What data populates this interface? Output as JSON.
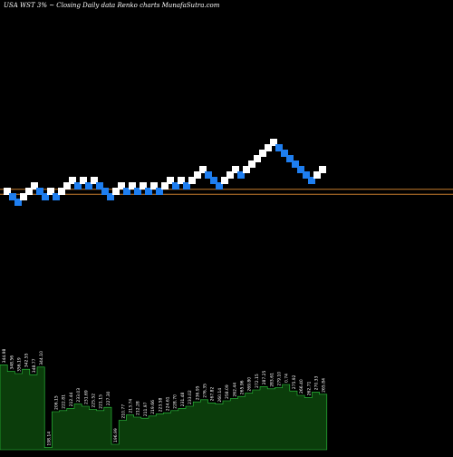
{
  "header": {
    "ticker_text": "USA WST 3% ~",
    "description": "Closing Daily data  Renko  charts MunafaSutra.com"
  },
  "colors": {
    "background": "#000000",
    "up_brick": "#ffffff",
    "down_brick": "#1e7ef0",
    "reference_line": "#c47a2c",
    "volume_fill": "#0b3d0b",
    "volume_outline": "#2ecc40",
    "label_text": "#ffffff"
  },
  "chart_data": {
    "type": "renko",
    "title": "",
    "bricks": [
      {
        "index": 0,
        "level": 38,
        "direction": "up"
      },
      {
        "index": 1,
        "level": 37,
        "direction": "down"
      },
      {
        "index": 2,
        "level": 36,
        "direction": "down"
      },
      {
        "index": 3,
        "level": 37,
        "direction": "up"
      },
      {
        "index": 4,
        "level": 38,
        "direction": "up"
      },
      {
        "index": 5,
        "level": 39,
        "direction": "up"
      },
      {
        "index": 6,
        "level": 38,
        "direction": "down"
      },
      {
        "index": 7,
        "level": 37,
        "direction": "down"
      },
      {
        "index": 8,
        "level": 38,
        "direction": "up"
      },
      {
        "index": 9,
        "level": 37,
        "direction": "down"
      },
      {
        "index": 10,
        "level": 38,
        "direction": "up"
      },
      {
        "index": 11,
        "level": 39,
        "direction": "up"
      },
      {
        "index": 12,
        "level": 40,
        "direction": "up"
      },
      {
        "index": 13,
        "level": 39,
        "direction": "down"
      },
      {
        "index": 14,
        "level": 40,
        "direction": "up"
      },
      {
        "index": 15,
        "level": 39,
        "direction": "down"
      },
      {
        "index": 16,
        "level": 40,
        "direction": "up"
      },
      {
        "index": 17,
        "level": 39,
        "direction": "down"
      },
      {
        "index": 18,
        "level": 38,
        "direction": "down"
      },
      {
        "index": 19,
        "level": 37,
        "direction": "down"
      },
      {
        "index": 20,
        "level": 38,
        "direction": "up"
      },
      {
        "index": 21,
        "level": 39,
        "direction": "up"
      },
      {
        "index": 22,
        "level": 38,
        "direction": "down"
      },
      {
        "index": 23,
        "level": 39,
        "direction": "up"
      },
      {
        "index": 24,
        "level": 38,
        "direction": "down"
      },
      {
        "index": 25,
        "level": 39,
        "direction": "up"
      },
      {
        "index": 26,
        "level": 38,
        "direction": "down"
      },
      {
        "index": 27,
        "level": 39,
        "direction": "up"
      },
      {
        "index": 28,
        "level": 38,
        "direction": "down"
      },
      {
        "index": 29,
        "level": 39,
        "direction": "up"
      },
      {
        "index": 30,
        "level": 40,
        "direction": "up"
      },
      {
        "index": 31,
        "level": 39,
        "direction": "down"
      },
      {
        "index": 32,
        "level": 40,
        "direction": "up"
      },
      {
        "index": 33,
        "level": 39,
        "direction": "down"
      },
      {
        "index": 34,
        "level": 40,
        "direction": "up"
      },
      {
        "index": 35,
        "level": 41,
        "direction": "up"
      },
      {
        "index": 36,
        "level": 42,
        "direction": "up"
      },
      {
        "index": 37,
        "level": 41,
        "direction": "down"
      },
      {
        "index": 38,
        "level": 40,
        "direction": "down"
      },
      {
        "index": 39,
        "level": 39,
        "direction": "down"
      },
      {
        "index": 40,
        "level": 40,
        "direction": "up"
      },
      {
        "index": 41,
        "level": 41,
        "direction": "up"
      },
      {
        "index": 42,
        "level": 42,
        "direction": "up"
      },
      {
        "index": 43,
        "level": 41,
        "direction": "down"
      },
      {
        "index": 44,
        "level": 42,
        "direction": "up"
      },
      {
        "index": 45,
        "level": 43,
        "direction": "up"
      },
      {
        "index": 46,
        "level": 44,
        "direction": "up"
      },
      {
        "index": 47,
        "level": 45,
        "direction": "up"
      },
      {
        "index": 48,
        "level": 46,
        "direction": "up"
      },
      {
        "index": 49,
        "level": 47,
        "direction": "up"
      },
      {
        "index": 50,
        "level": 46,
        "direction": "down"
      },
      {
        "index": 51,
        "level": 45,
        "direction": "down"
      },
      {
        "index": 52,
        "level": 44,
        "direction": "down"
      },
      {
        "index": 53,
        "level": 43,
        "direction": "down"
      },
      {
        "index": 54,
        "level": 42,
        "direction": "down"
      },
      {
        "index": 55,
        "level": 41,
        "direction": "down"
      },
      {
        "index": 56,
        "level": 40,
        "direction": "down"
      },
      {
        "index": 57,
        "level": 41,
        "direction": "up"
      },
      {
        "index": 58,
        "level": 42,
        "direction": "up"
      }
    ],
    "reference_lines": [
      {
        "name": "line-upper",
        "level": 37.7
      },
      {
        "name": "line-lower",
        "level": 36.8
      }
    ],
    "volume": {
      "columns": [
        {
          "index": 0,
          "value": 78,
          "label": "344.98"
        },
        {
          "index": 1,
          "value": 72,
          "label": "348.56"
        },
        {
          "index": 2,
          "value": 70,
          "label": "356.19"
        },
        {
          "index": 3,
          "value": 74,
          "label": "342.55"
        },
        {
          "index": 4,
          "value": 69,
          "label": "348.77"
        },
        {
          "index": 5,
          "value": 76,
          "label": "344.10"
        },
        {
          "index": 6,
          "value": 2,
          "label": "198.14"
        },
        {
          "index": 7,
          "value": 35,
          "label": "206.15"
        },
        {
          "index": 8,
          "value": 36,
          "label": "222.81"
        },
        {
          "index": 9,
          "value": 38,
          "label": "212.44"
        },
        {
          "index": 10,
          "value": 42,
          "label": "233.03"
        },
        {
          "index": 11,
          "value": 40,
          "label": "231.69"
        },
        {
          "index": 12,
          "value": 37,
          "label": "225.52"
        },
        {
          "index": 13,
          "value": 36,
          "label": "221.15"
        },
        {
          "index": 14,
          "value": 39,
          "label": "227.30"
        },
        {
          "index": 15,
          "value": 5,
          "label": "196.99"
        },
        {
          "index": 16,
          "value": 27,
          "label": "210.77"
        },
        {
          "index": 17,
          "value": 32,
          "label": "213.74"
        },
        {
          "index": 18,
          "value": 30,
          "label": "212.28"
        },
        {
          "index": 19,
          "value": 29,
          "label": "211.97"
        },
        {
          "index": 20,
          "value": 31,
          "label": "219.66"
        },
        {
          "index": 21,
          "value": 33,
          "label": "223.58"
        },
        {
          "index": 22,
          "value": 34,
          "label": "224.61"
        },
        {
          "index": 23,
          "value": 36,
          "label": "228.70"
        },
        {
          "index": 24,
          "value": 38,
          "label": "231.48"
        },
        {
          "index": 25,
          "value": 40,
          "label": "233.02"
        },
        {
          "index": 26,
          "value": 44,
          "label": "236.95"
        },
        {
          "index": 27,
          "value": 46,
          "label": "276.35"
        },
        {
          "index": 28,
          "value": 43,
          "label": "267.82"
        },
        {
          "index": 29,
          "value": 42,
          "label": "260.14"
        },
        {
          "index": 30,
          "value": 45,
          "label": "258.09"
        },
        {
          "index": 31,
          "value": 47,
          "label": "262.44"
        },
        {
          "index": 32,
          "value": 49,
          "label": "265.96"
        },
        {
          "index": 33,
          "value": 52,
          "label": "269.80"
        },
        {
          "index": 34,
          "value": 55,
          "label": "272.15"
        },
        {
          "index": 35,
          "value": 58,
          "label": "287.25"
        },
        {
          "index": 36,
          "value": 56,
          "label": "283.61"
        },
        {
          "index": 37,
          "value": 57,
          "label": "279.10"
        },
        {
          "index": 38,
          "value": 60,
          "label": "0.74"
        },
        {
          "index": 39,
          "value": 54,
          "label": "275.92"
        },
        {
          "index": 40,
          "value": 50,
          "label": "266.40"
        },
        {
          "index": 41,
          "value": 48,
          "label": "262.71"
        },
        {
          "index": 42,
          "value": 53,
          "label": "270.33"
        },
        {
          "index": 43,
          "value": 51,
          "label": "265.84"
        }
      ]
    }
  }
}
